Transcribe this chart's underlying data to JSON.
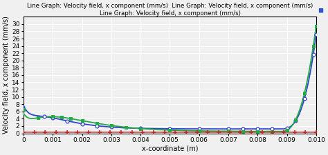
{
  "title_line1": "Line Graph: Velocity field, x component (mm/s)  Line Graph: Velocity field, x component (mm/s)",
  "title_line2": "Line Graph: Velocity field, x component (mm/s)",
  "xlabel": "x-coordinate (m)",
  "ylabel": "Velocity field, x component (mm/s)",
  "xlim": [
    0,
    0.01
  ],
  "ylim": [
    0,
    32
  ],
  "yticks": [
    0,
    2,
    4,
    6,
    8,
    10,
    12,
    14,
    16,
    18,
    20,
    22,
    24,
    26,
    28,
    30
  ],
  "xticks": [
    0,
    0.001,
    0.002,
    0.003,
    0.004,
    0.005,
    0.006,
    0.007,
    0.008,
    0.009,
    0.01
  ],
  "bg_color": "#f0f0f0",
  "grid_color": "#ffffff",
  "blue_color": "#3344cc",
  "green_color": "#22aa44",
  "red_color": "#cc2222",
  "title_fontsize": 6.2,
  "axis_label_fontsize": 7,
  "tick_fontsize": 6.5
}
